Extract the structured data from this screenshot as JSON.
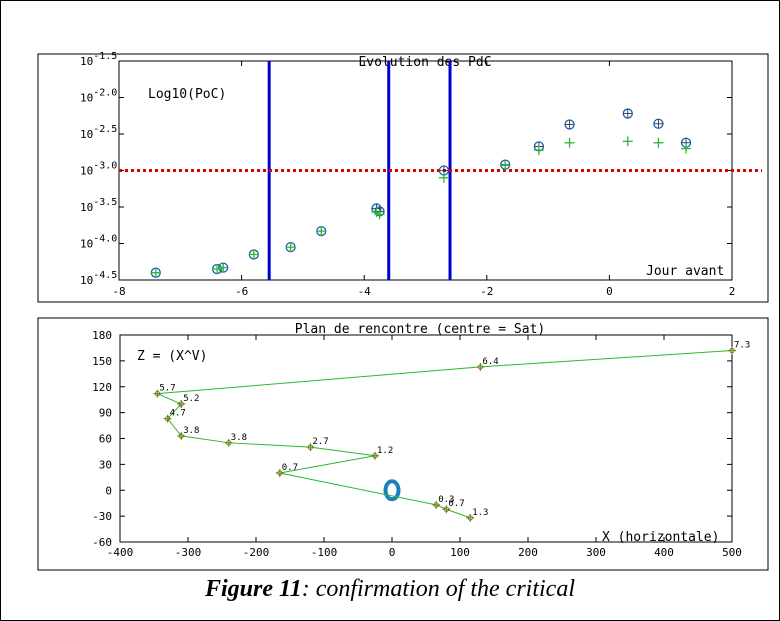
{
  "caption": {
    "figure_label": "Figure 11",
    "text": ": confirmation of the critical"
  },
  "chart_data": [
    {
      "type": "scatter",
      "title": "Evolution des PdC",
      "ylabel": "Log10(PoC)",
      "xlabel": "Jour avant",
      "xlim": [
        -8,
        2
      ],
      "ylim": [
        -4.5,
        -1.5
      ],
      "y_scale": "log10",
      "x_ticks": [
        -8,
        -6,
        -4,
        -2,
        0,
        2
      ],
      "y_ticks": [
        {
          "base": "10",
          "exp": "-1.5",
          "value": -1.5
        },
        {
          "base": "10",
          "exp": "-2.0",
          "value": -2.0
        },
        {
          "base": "10",
          "exp": "-2.5",
          "value": -2.5
        },
        {
          "base": "10",
          "exp": "-3.0",
          "value": -3.0
        },
        {
          "base": "10",
          "exp": "-3.5",
          "value": -3.5
        },
        {
          "base": "10",
          "exp": "-4.0",
          "value": -4.0
        },
        {
          "base": "10",
          "exp": "-4.5",
          "value": -4.5
        }
      ],
      "threshold": {
        "y": -3.0,
        "color": "#dd0000"
      },
      "vertical_lines": {
        "x": [
          -5.55,
          -3.6,
          -2.6
        ],
        "color": "#0000cc"
      },
      "series": [
        {
          "marker": "circle",
          "color": "#1a5fb4",
          "points": [
            [
              -7.4,
              -4.4
            ],
            [
              -6.4,
              -4.35
            ],
            [
              -6.3,
              -4.33
            ],
            [
              -5.8,
              -4.15
            ],
            [
              -5.2,
              -4.05
            ],
            [
              -4.7,
              -3.83
            ],
            [
              -3.8,
              -3.52
            ],
            [
              -3.75,
              -3.56
            ],
            [
              -2.7,
              -3.0
            ],
            [
              -1.7,
              -2.92
            ],
            [
              -1.15,
              -2.67
            ],
            [
              -0.65,
              -2.37
            ],
            [
              0.3,
              -2.22
            ],
            [
              0.8,
              -2.36
            ],
            [
              1.25,
              -2.62
            ]
          ]
        },
        {
          "marker": "plus",
          "color": "#2eb82e",
          "points": [
            [
              -7.4,
              -4.4
            ],
            [
              -6.4,
              -4.35
            ],
            [
              -6.3,
              -4.33
            ],
            [
              -5.8,
              -4.15
            ],
            [
              -5.2,
              -4.05
            ],
            [
              -4.7,
              -3.83
            ],
            [
              -3.8,
              -3.57
            ],
            [
              -3.75,
              -3.6
            ],
            [
              -2.7,
              -3.1
            ],
            [
              -1.7,
              -2.93
            ],
            [
              -1.15,
              -2.72
            ],
            [
              -0.65,
              -2.62
            ],
            [
              0.3,
              -2.6
            ],
            [
              0.8,
              -2.62
            ],
            [
              1.25,
              -2.7
            ]
          ]
        }
      ]
    },
    {
      "type": "line",
      "title": "Plan de rencontre (centre = Sat)",
      "ylabel": "Z = (X^V)",
      "xlabel": "X (horizontale)",
      "xlim": [
        -400,
        500
      ],
      "ylim": [
        -60,
        180
      ],
      "x_ticks": [
        -400,
        -300,
        -200,
        -100,
        0,
        100,
        200,
        300,
        400,
        500
      ],
      "y_ticks": [
        180,
        150,
        120,
        90,
        60,
        30,
        0,
        -30,
        -60
      ],
      "line_color": "#2eb82e",
      "point_color": "#cc3300",
      "center_marker": {
        "x": 0,
        "y": 0,
        "color": "#1a7fc1"
      },
      "points": [
        {
          "x": 500,
          "y": 162,
          "label": "7.3"
        },
        {
          "x": 130,
          "y": 143,
          "label": "6.4"
        },
        {
          "x": -345,
          "y": 112,
          "label": "5.7"
        },
        {
          "x": -310,
          "y": 100,
          "label": "5.2"
        },
        {
          "x": -330,
          "y": 83,
          "label": "4.7"
        },
        {
          "x": -310,
          "y": 63,
          "label": "3.8"
        },
        {
          "x": -240,
          "y": 55,
          "label": "3.8"
        },
        {
          "x": -120,
          "y": 50,
          "label": "2.7"
        },
        {
          "x": -25,
          "y": 40,
          "label": "1.2"
        },
        {
          "x": -165,
          "y": 20,
          "label": "0.7"
        },
        {
          "x": 65,
          "y": -17,
          "label": "0.3"
        },
        {
          "x": 80,
          "y": -22,
          "label": "0.7"
        },
        {
          "x": 115,
          "y": -32,
          "label": "1.3"
        }
      ]
    }
  ]
}
